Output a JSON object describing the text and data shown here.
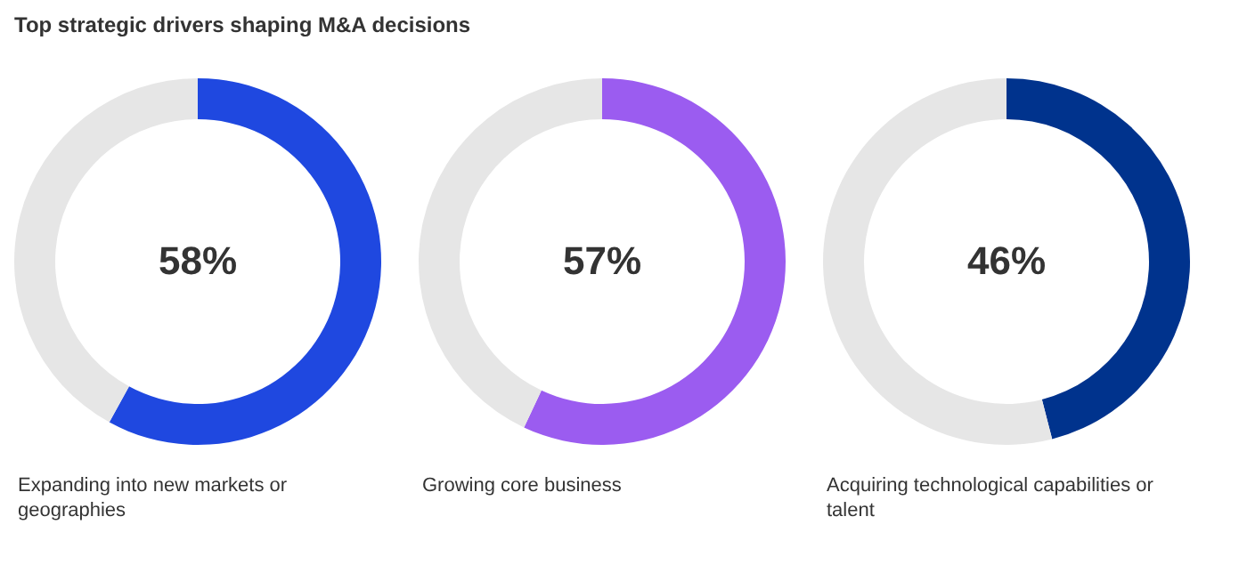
{
  "chart_data": [
    {
      "type": "donut",
      "title": "Top strategic drivers shaping M&A decisions",
      "categories": [
        null,
        null
      ],
      "values": [
        58,
        42
      ],
      "colors": [
        "#1f48e0",
        "#e6e6e6"
      ],
      "value_labels": [
        "58%",
        null
      ],
      "annotations": [
        "Expanding into new markets or geographies"
      ]
    },
    {
      "type": "donut",
      "categories": [
        null,
        null
      ],
      "values": [
        57,
        43
      ],
      "colors": [
        "#9b5cf0",
        "#e6e6e6"
      ],
      "value_labels": [
        "57%",
        null
      ],
      "annotations": [
        "Growing core business"
      ]
    },
    {
      "type": "donut",
      "categories": [
        null,
        null
      ],
      "values": [
        46,
        54
      ],
      "colors": [
        "#00338d",
        "#e6e6e6"
      ],
      "value_labels": [
        "46%",
        null
      ],
      "annotations": [
        "Acquiring technological capabilities or talent"
      ]
    }
  ]
}
